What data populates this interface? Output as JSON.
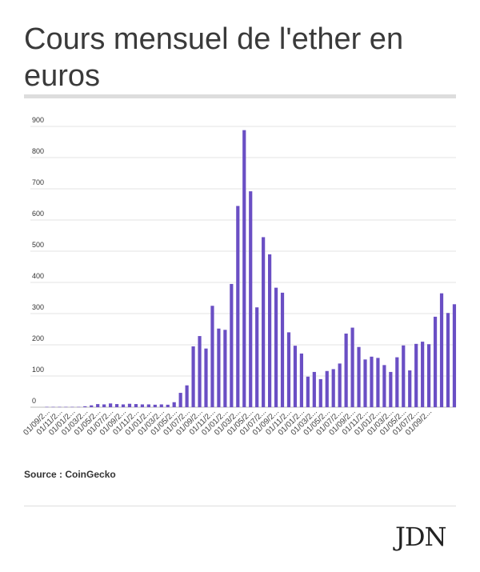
{
  "header": {
    "title": "Cours mensuel de l'ether en euros"
  },
  "footer": {
    "source": "Source : CoinGecko",
    "logo": "JDN"
  },
  "colors": {
    "bar": "#6a4fc4",
    "grid": "#e3e3e3",
    "rule": "#dddddd"
  },
  "chart_data": {
    "type": "bar",
    "title": "Cours mensuel de l'ether en euros",
    "xlabel": "",
    "ylabel": "",
    "ylim": [
      0,
      900
    ],
    "yticks": [
      0,
      100,
      200,
      300,
      400,
      500,
      600,
      700,
      800,
      900
    ],
    "grid": true,
    "legend": "none",
    "x_tick_labels": [
      "01/09/2...",
      "01/11/2...",
      "01/01/2...",
      "01/03/2...",
      "01/05/2...",
      "01/07/2...",
      "01/09/2...",
      "01/11/2...",
      "01/01/2...",
      "01/03/2...",
      "01/05/2...",
      "01/07/2...",
      "01/09/2...",
      "01/11/2...",
      "01/01/2...",
      "01/03/2...",
      "01/05/2...",
      "01/07/2...",
      "01/09/2...",
      "01/11/2...",
      "01/01/2...",
      "01/03/2...",
      "01/05/2...",
      "01/07/2...",
      "01/09/2...",
      "01/11/2...",
      "01/01/2...",
      "01/03/2...",
      "01/05/2...",
      "01/07/2...",
      "01/09/2..."
    ],
    "values": [
      1,
      1,
      1,
      1,
      1,
      1,
      3,
      6,
      10,
      9,
      12,
      10,
      9,
      11,
      10,
      9,
      9,
      8,
      9,
      8,
      16,
      46,
      70,
      195,
      228,
      188,
      325,
      252,
      248,
      395,
      645,
      888,
      692,
      320,
      545,
      490,
      383,
      367,
      240,
      197,
      172,
      98,
      113,
      90,
      116,
      122,
      140,
      236,
      255,
      193,
      153,
      162,
      158,
      135,
      113,
      160,
      198,
      118,
      203,
      210,
      202,
      290,
      365,
      302,
      330
    ]
  }
}
